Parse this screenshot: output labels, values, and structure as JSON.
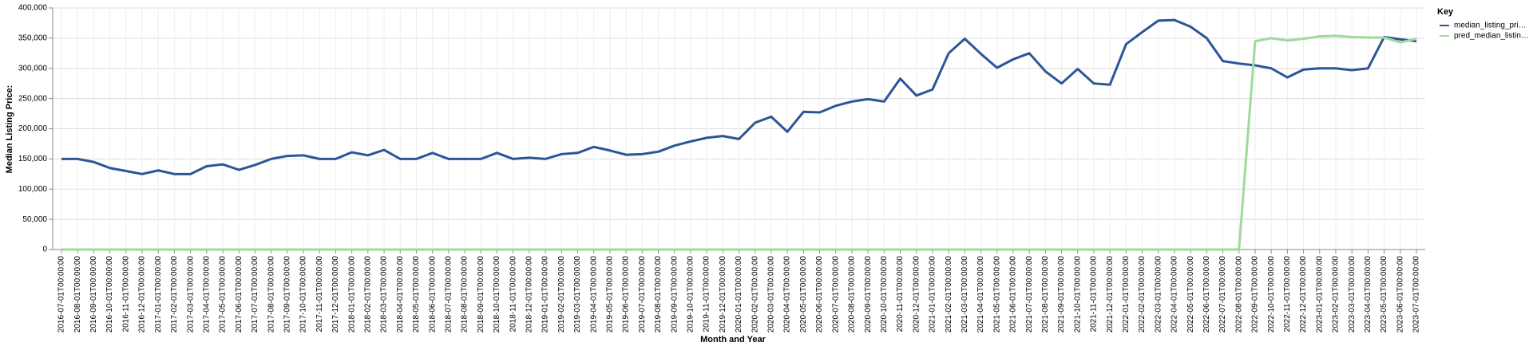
{
  "chart_data": {
    "type": "line",
    "x_label": "Month and Year",
    "y_label": "Median Listing Price:",
    "legend_title": "Key",
    "legend_position": "right",
    "grid": true,
    "categories": [
      "2016-07-01T00:00:00",
      "2016-08-01T00:00:00",
      "2016-09-01T00:00:00",
      "2016-10-01T00:00:00",
      "2016-11-01T00:00:00",
      "2016-12-01T00:00:00",
      "2017-01-01T00:00:00",
      "2017-02-01T00:00:00",
      "2017-03-01T00:00:00",
      "2017-04-01T00:00:00",
      "2017-05-01T00:00:00",
      "2017-06-01T00:00:00",
      "2017-07-01T00:00:00",
      "2017-08-01T00:00:00",
      "2017-09-01T00:00:00",
      "2017-10-01T00:00:00",
      "2017-11-01T00:00:00",
      "2017-12-01T00:00:00",
      "2018-01-01T00:00:00",
      "2018-02-01T00:00:00",
      "2018-03-01T00:00:00",
      "2018-04-01T00:00:00",
      "2018-05-01T00:00:00",
      "2018-06-01T00:00:00",
      "2018-07-01T00:00:00",
      "2018-08-01T00:00:00",
      "2018-09-01T00:00:00",
      "2018-10-01T00:00:00",
      "2018-11-01T00:00:00",
      "2018-12-01T00:00:00",
      "2019-01-01T00:00:00",
      "2019-02-01T00:00:00",
      "2019-03-01T00:00:00",
      "2019-04-01T00:00:00",
      "2019-05-01T00:00:00",
      "2019-06-01T00:00:00",
      "2019-07-01T00:00:00",
      "2019-08-01T00:00:00",
      "2019-09-01T00:00:00",
      "2019-10-01T00:00:00",
      "2019-11-01T00:00:00",
      "2019-12-01T00:00:00",
      "2020-01-01T00:00:00",
      "2020-02-01T00:00:00",
      "2020-03-01T00:00:00",
      "2020-04-01T00:00:00",
      "2020-05-01T00:00:00",
      "2020-06-01T00:00:00",
      "2020-07-01T00:00:00",
      "2020-08-01T00:00:00",
      "2020-09-01T00:00:00",
      "2020-10-01T00:00:00",
      "2020-11-01T00:00:00",
      "2020-12-01T00:00:00",
      "2021-01-01T00:00:00",
      "2021-02-01T00:00:00",
      "2021-03-01T00:00:00",
      "2021-04-01T00:00:00",
      "2021-05-01T00:00:00",
      "2021-06-01T00:00:00",
      "2021-07-01T00:00:00",
      "2021-08-01T00:00:00",
      "2021-09-01T00:00:00",
      "2021-10-01T00:00:00",
      "2021-11-01T00:00:00",
      "2021-12-01T00:00:00",
      "2022-01-01T00:00:00",
      "2022-02-01T00:00:00",
      "2022-03-01T00:00:00",
      "2022-04-01T00:00:00",
      "2022-05-01T00:00:00",
      "2022-06-01T00:00:00",
      "2022-07-01T00:00:00",
      "2022-08-01T00:00:00",
      "2022-09-01T00:00:00",
      "2022-10-01T00:00:00",
      "2022-11-01T00:00:00",
      "2022-12-01T00:00:00",
      "2023-01-01T00:00:00",
      "2023-02-01T00:00:00",
      "2023-03-01T00:00:00",
      "2023-04-01T00:00:00",
      "2023-05-01T00:00:00",
      "2023-06-01T00:00:00",
      "2023-07-01T00:00:00"
    ],
    "series": [
      {
        "name": "median_listing_pri…",
        "color": "#2c5597",
        "values": [
          150000,
          150000,
          145000,
          135000,
          130000,
          125000,
          131000,
          125000,
          125000,
          138000,
          141000,
          132000,
          140000,
          150000,
          155000,
          156000,
          150000,
          150000,
          161000,
          156000,
          165000,
          150000,
          150000,
          160000,
          150000,
          150000,
          150000,
          160000,
          150000,
          152000,
          150000,
          158000,
          160000,
          170000,
          164000,
          157000,
          158000,
          162000,
          172000,
          179000,
          185000,
          188000,
          183000,
          210000,
          220000,
          195000,
          228000,
          227000,
          238000,
          245000,
          249000,
          245000,
          283000,
          255000,
          265000,
          325000,
          349000,
          324000,
          301000,
          315000,
          325000,
          295000,
          275000,
          299000,
          275000,
          273000,
          340000,
          360000,
          379000,
          380000,
          369000,
          350000,
          312000,
          308000,
          305000,
          300000,
          285000,
          298000,
          300000,
          300000,
          297000,
          300000,
          352000,
          348000,
          345000
        ]
      },
      {
        "name": "pred_median_listin…",
        "color": "#a1d99b",
        "values": [
          0,
          0,
          0,
          0,
          0,
          0,
          0,
          0,
          0,
          0,
          0,
          0,
          0,
          0,
          0,
          0,
          0,
          0,
          0,
          0,
          0,
          0,
          0,
          0,
          0,
          0,
          0,
          0,
          0,
          0,
          0,
          0,
          0,
          0,
          0,
          0,
          0,
          0,
          0,
          0,
          0,
          0,
          0,
          0,
          0,
          0,
          0,
          0,
          0,
          0,
          0,
          0,
          0,
          0,
          0,
          0,
          0,
          0,
          0,
          0,
          0,
          0,
          0,
          0,
          0,
          0,
          0,
          0,
          0,
          0,
          0,
          0,
          0,
          0,
          345000,
          350000,
          346000,
          349000,
          353000,
          354000,
          352000,
          351000,
          351000,
          343000,
          349000
        ]
      }
    ],
    "ylim": [
      0,
      400000
    ],
    "yticks": [
      {
        "value": 0,
        "label": "0"
      },
      {
        "value": 50000,
        "label": "50,000"
      },
      {
        "value": 100000,
        "label": "100,000"
      },
      {
        "value": 150000,
        "label": "150,000"
      },
      {
        "value": 200000,
        "label": "200,000"
      },
      {
        "value": 250000,
        "label": "250,000"
      },
      {
        "value": 300000,
        "label": "300,000"
      },
      {
        "value": 350000,
        "label": "350,000"
      },
      {
        "value": 400000,
        "label": "400,000"
      }
    ]
  }
}
